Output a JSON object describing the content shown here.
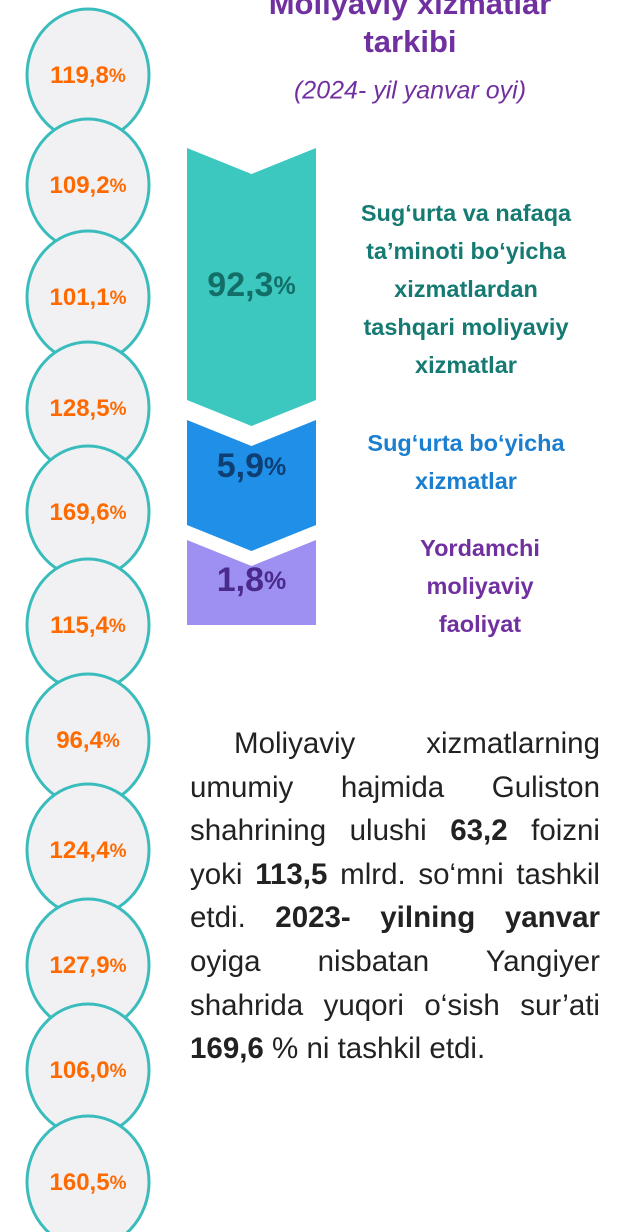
{
  "title": "Moliyaviy xizmatlar tarkibi",
  "subtitle": "(2024- yil yanvar oyi)",
  "circles": [
    {
      "value": "119,8",
      "unit": "%"
    },
    {
      "value": "109,2",
      "unit": "%"
    },
    {
      "value": "101,1",
      "unit": "%"
    },
    {
      "value": "128,5",
      "unit": "%"
    },
    {
      "value": "169,6",
      "unit": "%"
    },
    {
      "value": "115,4",
      "unit": "%"
    },
    {
      "value": "96,4",
      "unit": "%"
    },
    {
      "value": "124,4",
      "unit": "%"
    },
    {
      "value": "127,9",
      "unit": "%"
    },
    {
      "value": "106,0",
      "unit": "%"
    },
    {
      "value": "160,5",
      "unit": "%"
    }
  ],
  "segments": [
    {
      "value": "92,3",
      "unit": "%",
      "color": "#3cc7bf",
      "text_color": "#136e68",
      "label_lines": [
        "Sug‘urta va nafaqa",
        "ta’minoti bo‘yicha",
        "xizmatlardan",
        "tashqari moliyaviy",
        "xizmatlar"
      ],
      "label_color": "#157a72"
    },
    {
      "value": "5,9",
      "unit": "%",
      "color": "#1f8fe8",
      "text_color": "#0d3f73",
      "label_lines": [
        "Sug‘urta bo‘yicha",
        "xizmatlar"
      ],
      "label_color": "#1a7fd0"
    },
    {
      "value": "1,8",
      "unit": "%",
      "color": "#9d90f2",
      "text_color": "#4a2a8a",
      "label_lines": [
        "Yordamchi",
        "moliyaviy",
        "faoliyat"
      ],
      "label_color": "#7030a0"
    }
  ],
  "paragraph": [
    {
      "text": "Moliyaviy xizmatlar­ning umumiy hajmida Guliston shahrining ulushi ",
      "bold": false
    },
    {
      "text": "63,2",
      "bold": true
    },
    {
      "text": " foizni yoki ",
      "bold": false
    },
    {
      "text": "113,5",
      "bold": true
    },
    {
      "text": " mlrd. so‘mni tashkil etdi. ",
      "bold": false
    },
    {
      "text": "2023- yilning yanvar",
      "bold": true
    },
    {
      "text": " oyiga nisbatan Yangiyer shahrida yuqori o‘sish sur’ati ",
      "bold": false
    },
    {
      "text": "169,6",
      "bold": true
    },
    {
      "text": " % ni tashkil etdi.",
      "bold": false
    }
  ]
}
